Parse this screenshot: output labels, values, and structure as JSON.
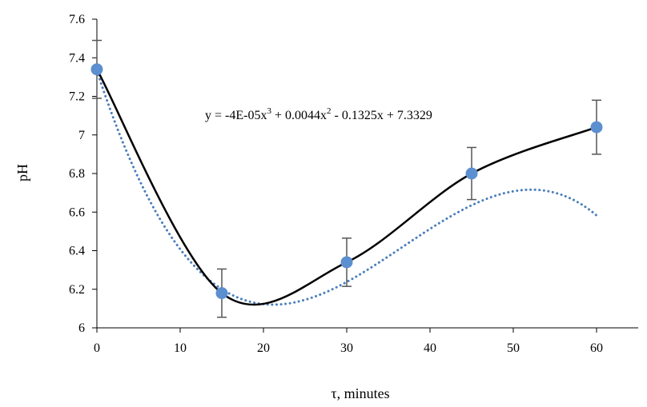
{
  "chart_data": {
    "type": "scatter",
    "title": "",
    "xlabel": "τ, minutes",
    "ylabel": "pH",
    "xlim": [
      0,
      65
    ],
    "ylim": [
      6.0,
      7.6
    ],
    "xticks": [
      0,
      10,
      20,
      30,
      40,
      50,
      60
    ],
    "yticks": [
      6,
      6.2,
      6.4,
      6.6,
      6.8,
      7,
      7.2,
      7.4,
      7.6
    ],
    "grid": false,
    "legend": "none",
    "points": [
      {
        "x": 0,
        "y": 7.34,
        "err": 0.15
      },
      {
        "x": 15,
        "y": 6.18,
        "err": 0.125
      },
      {
        "x": 30,
        "y": 6.34,
        "err": 0.125
      },
      {
        "x": 45,
        "y": 6.8,
        "err": 0.135
      },
      {
        "x": 60,
        "y": 7.04,
        "err": 0.14
      }
    ],
    "smooth_line": {
      "style": "solid",
      "color": "#000000"
    },
    "trendline": {
      "type": "polynomial",
      "order": 3,
      "coefficients": [
        -4e-05,
        0.0044,
        -0.1325,
        7.3329
      ],
      "style": "dotted",
      "color": "#4a7ebb",
      "equation_label": [
        "y = -4E-05x",
        "3",
        " + 0.0044x",
        "2",
        " - 0.1325x + 7.3329"
      ]
    },
    "colors": {
      "marker": "#5b8fd0",
      "error_bar": "#555555",
      "axis": "#000000"
    }
  }
}
